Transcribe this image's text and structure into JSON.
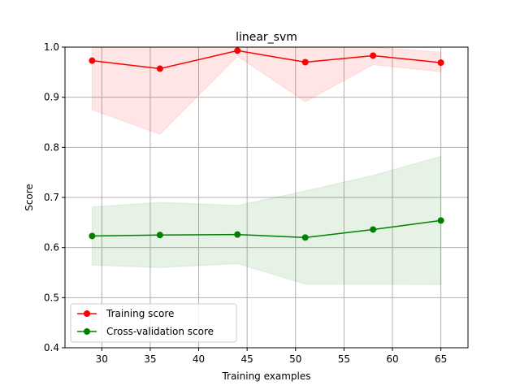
{
  "chart_data": {
    "type": "line",
    "title": "linear_svm",
    "xlabel": "Training examples",
    "ylabel": "Score",
    "xlim": [
      26.2,
      67.8
    ],
    "ylim": [
      0.4,
      1.0
    ],
    "xticks": [
      30,
      35,
      40,
      45,
      50,
      55,
      60,
      65
    ],
    "yticks": [
      0.4,
      0.5,
      0.6,
      0.7,
      0.8,
      0.9,
      1.0
    ],
    "grid": true,
    "legend_position": "lower-left",
    "x": [
      29,
      36,
      44,
      51,
      58,
      65
    ],
    "series": [
      {
        "name": "Training score",
        "color": "#ff0000",
        "band_color": "#ff0000",
        "values": [
          0.973,
          0.957,
          0.993,
          0.97,
          0.983,
          0.969
        ],
        "band_upper": [
          1.0,
          1.0,
          1.0,
          1.0,
          1.0,
          0.99
        ],
        "band_lower": [
          0.875,
          0.826,
          0.982,
          0.891,
          0.965,
          0.951
        ]
      },
      {
        "name": "Cross-validation score",
        "color": "#008000",
        "band_color": "#008000",
        "values": [
          0.623,
          0.625,
          0.626,
          0.62,
          0.636,
          0.654
        ],
        "band_upper": [
          0.681,
          0.69,
          0.684,
          0.713,
          0.744,
          0.782
        ],
        "band_lower": [
          0.565,
          0.56,
          0.568,
          0.527,
          0.527,
          0.526
        ]
      }
    ]
  }
}
